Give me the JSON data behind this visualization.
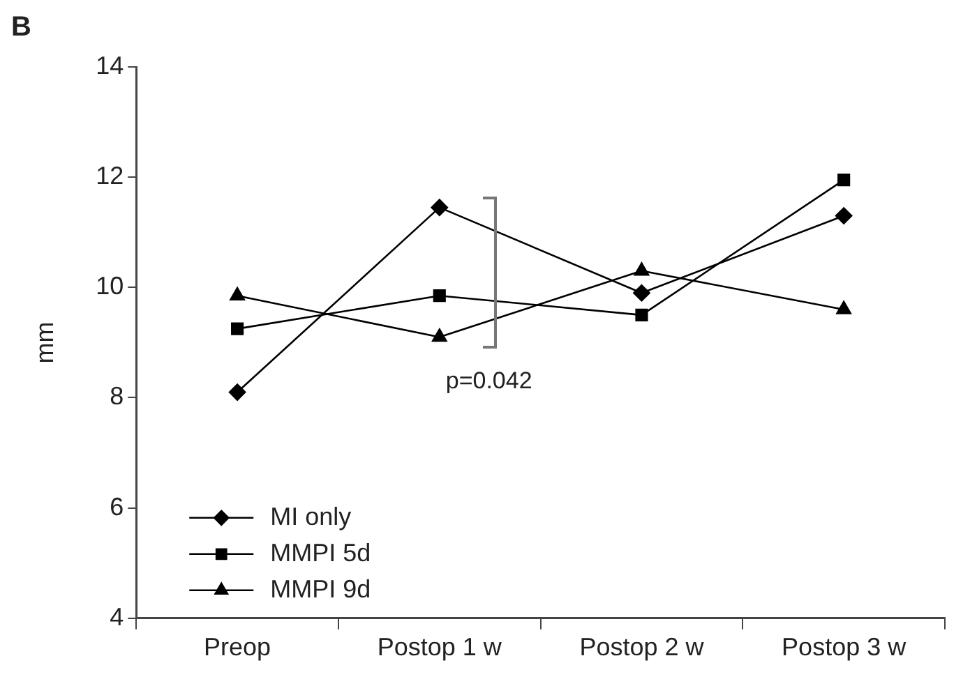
{
  "chart_data": {
    "type": "line",
    "ylabel": "mm",
    "categories": [
      "Preop",
      "Postop 1 w",
      "Postop 2 w",
      "Postop 3 w"
    ],
    "series": [
      {
        "name": "MI only",
        "color": "#000000",
        "marker": "diamond",
        "values": [
          8.1,
          11.45,
          9.9,
          11.3
        ]
      },
      {
        "name": "MMPI 5d",
        "color": "#000000",
        "marker": "square",
        "values": [
          9.25,
          9.85,
          9.5,
          11.95
        ]
      },
      {
        "name": "MMPI 9d",
        "color": "#000000",
        "marker": "triangle",
        "values": [
          9.85,
          9.1,
          10.3,
          9.6
        ]
      }
    ],
    "ylim": [
      4,
      14
    ],
    "yticks": [
      4,
      6,
      8,
      10,
      12,
      14
    ],
    "grid": false,
    "legend": "bottom left",
    "annotations": [
      "B",
      "p=0.042"
    ]
  }
}
